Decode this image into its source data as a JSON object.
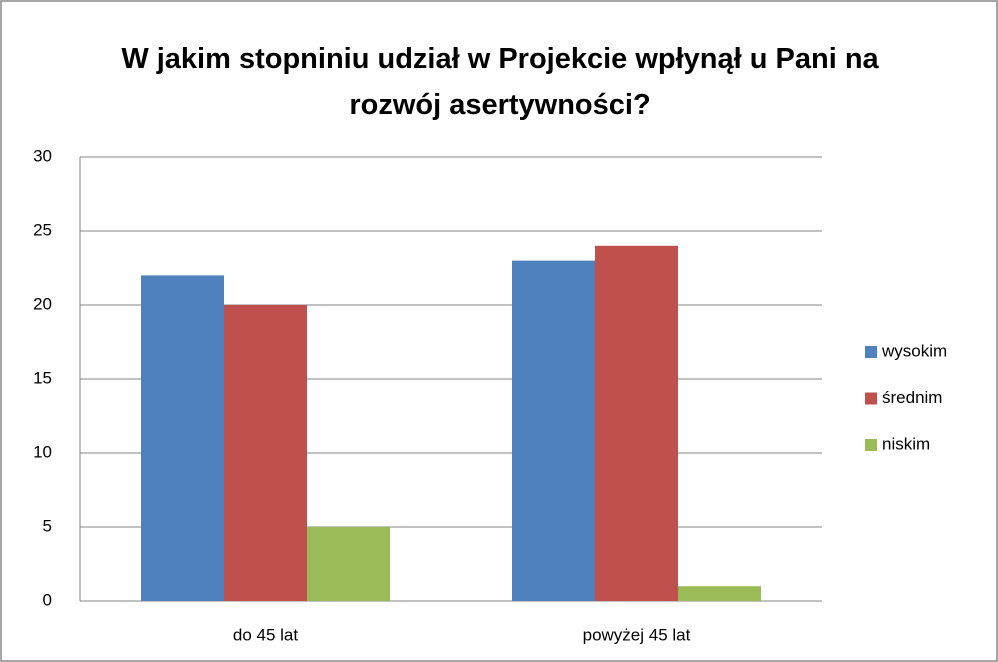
{
  "chart_data": {
    "type": "bar",
    "title": "W jakim stopniniu udział w Projekcie wpłynął u Pani na rozwój asertywności?",
    "categories": [
      "do 45 lat",
      "powyżej 45 lat"
    ],
    "series": [
      {
        "name": "wysokim",
        "color": "#4f81bd",
        "values": [
          22,
          23
        ]
      },
      {
        "name": "średnim",
        "color": "#c0504d",
        "values": [
          20,
          24
        ]
      },
      {
        "name": "niskim",
        "color": "#9bbb59",
        "values": [
          5,
          1
        ]
      }
    ],
    "ylim": [
      0,
      30
    ],
    "yticks": [
      0,
      5,
      10,
      15,
      20,
      25,
      30
    ],
    "grid": true,
    "legend": "right"
  }
}
